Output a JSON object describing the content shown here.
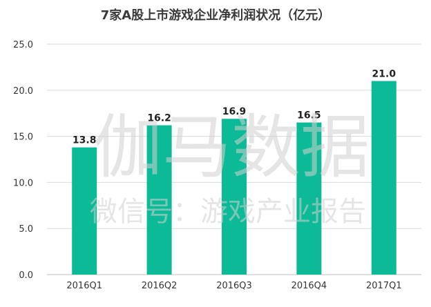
{
  "chart_data": {
    "type": "bar",
    "title": "7家A股上市游戏企业净利润状况（亿元）",
    "categories": [
      "2016Q1",
      "2016Q2",
      "2016Q3",
      "2016Q4",
      "2017Q1"
    ],
    "values": [
      13.8,
      16.2,
      16.9,
      16.5,
      21.0
    ],
    "value_labels": [
      "13.8",
      "16.2",
      "16.9",
      "16.5",
      "21.0"
    ],
    "ylim": [
      0,
      25
    ],
    "yticks": [
      "0.0",
      "5.0",
      "10.0",
      "15.0",
      "20.0",
      "25.0"
    ],
    "ytick_values": [
      0,
      5,
      10,
      15,
      20,
      25
    ],
    "xlabel": "",
    "ylabel": "",
    "grid": true,
    "legend": "none",
    "bar_color": "#0dba97",
    "grid_color": "#d9d9d9"
  },
  "watermark": {
    "main": "伽马数据",
    "sub": "微信号：游戏产业报告"
  }
}
